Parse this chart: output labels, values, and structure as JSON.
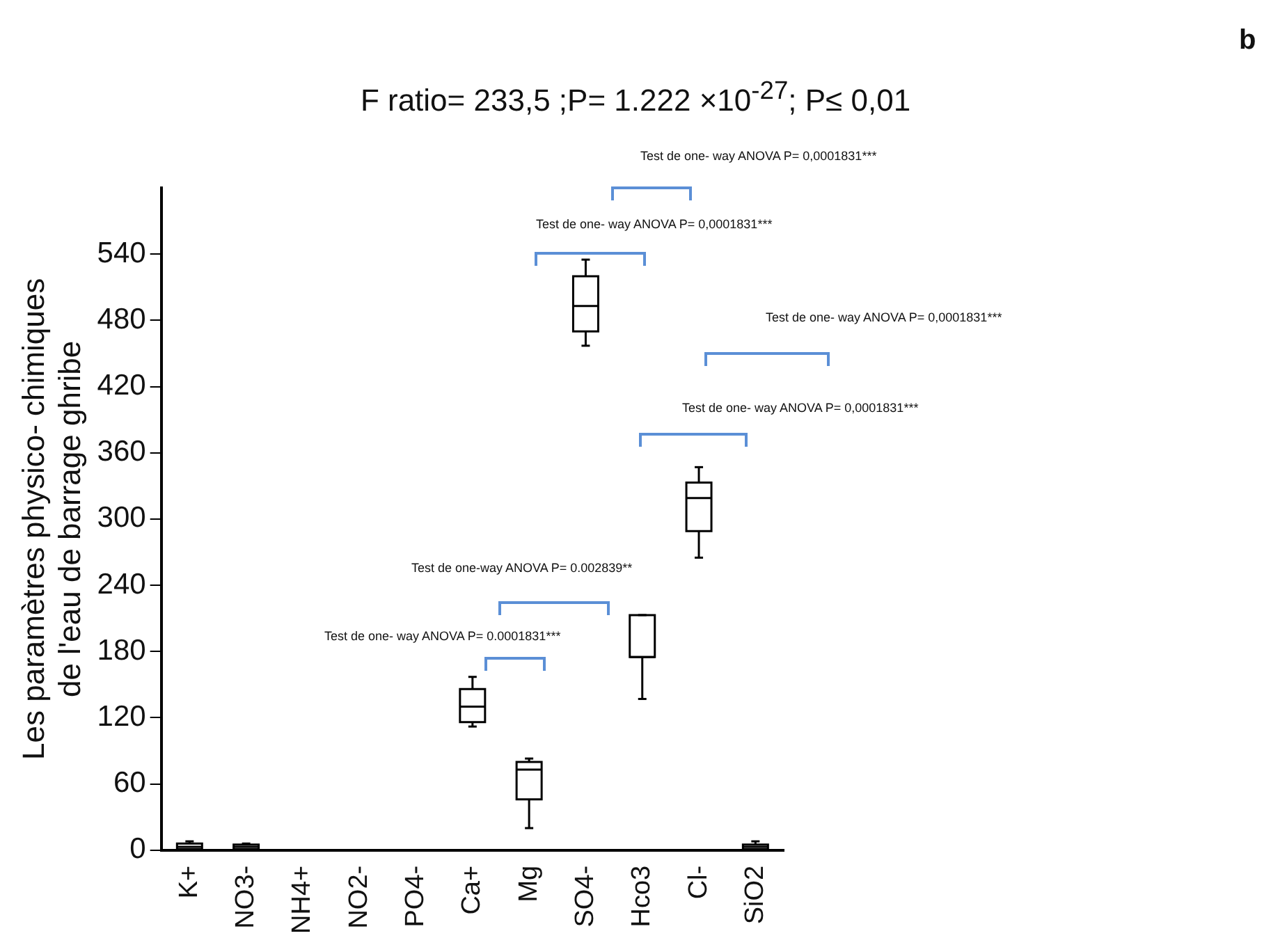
{
  "chart_data": {
    "type": "box",
    "title": "F ratio= 233,5 ;P= 1.222 ×10$^{-27}$; P≤ 0,01",
    "ylabel": "Les paramètres physico- chimiques\nde l'eau de barrage ghribe",
    "categories": [
      "K+",
      "NO3-",
      "NH4+",
      "NO2-",
      "PO4-",
      "Ca+",
      "Mg",
      "SO4-",
      "Hco3",
      "Cl-",
      "SiO2"
    ],
    "color": "#000000",
    "boxes": [
      {
        "low": 0,
        "q1": 1,
        "median": 3,
        "q3": 6,
        "high": 8
      },
      {
        "low": 0,
        "q1": 1,
        "median": 3,
        "q3": 5,
        "high": 6
      },
      null,
      null,
      null,
      {
        "low": 112,
        "q1": 116,
        "median": 130,
        "q3": 146,
        "high": 157
      },
      {
        "low": 20,
        "q1": 46,
        "median": 73,
        "q3": 80,
        "high": 83
      },
      {
        "low": 457,
        "q1": 470,
        "median": 493,
        "q3": 520,
        "high": 535
      },
      {
        "low": 137,
        "q1": 175,
        "median": 175,
        "q3": 213,
        "high": 213
      },
      {
        "low": 265,
        "q1": 289,
        "median": 319,
        "q3": 333,
        "high": 347
      },
      {
        "low": 0,
        "q1": 1,
        "median": 3,
        "q3": 5,
        "high": 8
      }
    ],
    "ylim": [
      0,
      600
    ],
    "yticks": [
      0,
      60,
      120,
      180,
      240,
      300,
      360,
      420,
      480,
      540
    ],
    "annotations": [
      "Test de one- way ANOVA P= 0,0001831***",
      "Test de one- way ANOVA P= 0,0001831***",
      "Test de one- way ANOVA P= 0,0001831***",
      "Test de one- way ANOVA P= 0,0001831***",
      "Test de one-way ANOVA P= 0.002839**",
      "Test de one- way ANOVA P= 0.0001831***",
      "b"
    ]
  }
}
